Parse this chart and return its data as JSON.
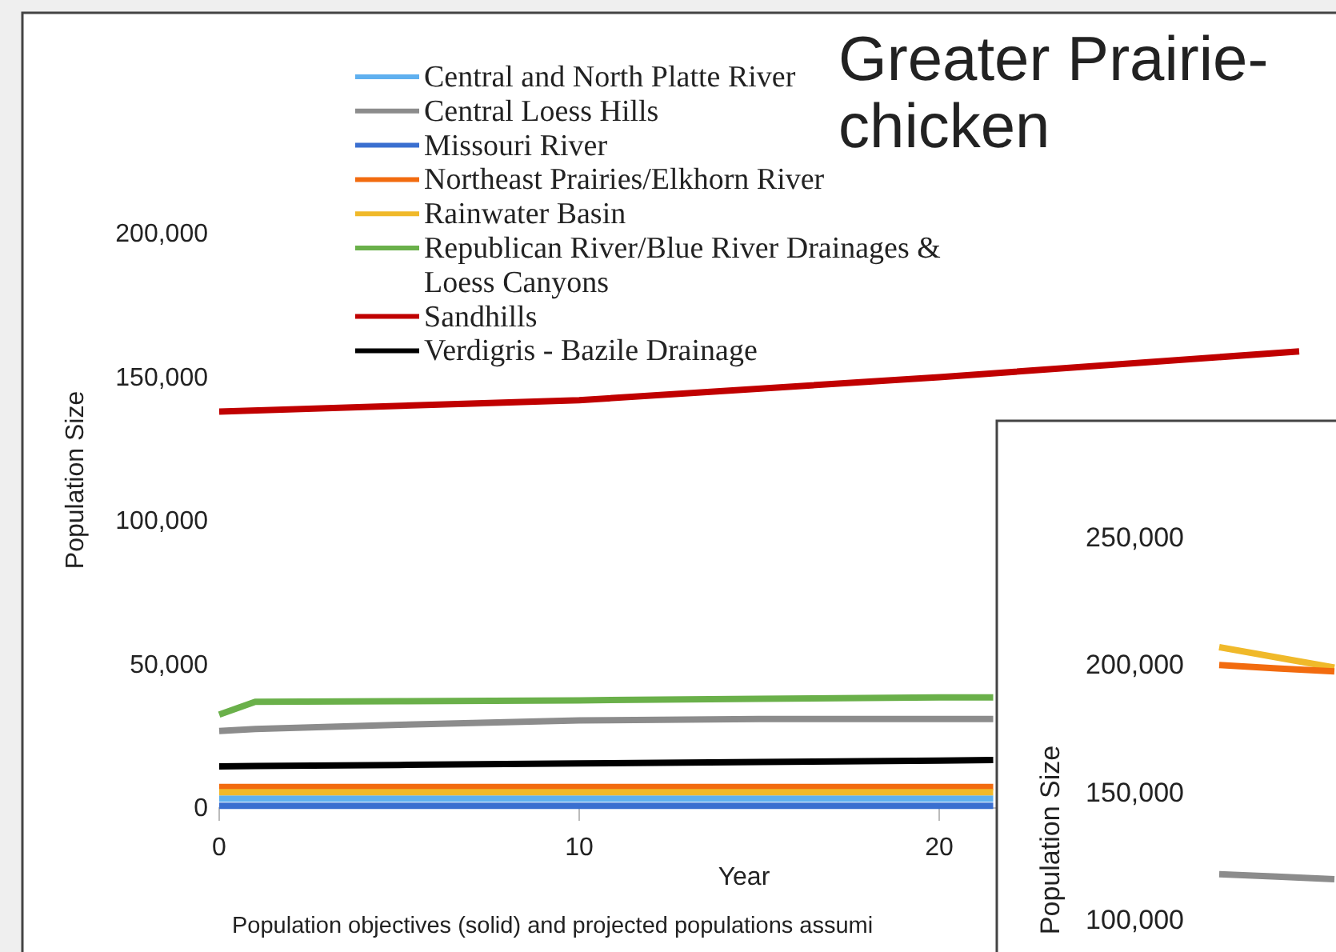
{
  "chart_data": [
    {
      "type": "line",
      "title": "Greater Prairie-chicken",
      "xlabel": "Year",
      "ylabel": "Population Size",
      "annotations": [
        "Population objectives (solid) and projected populations assumi"
      ],
      "x": [
        0,
        1,
        5,
        10,
        15,
        20,
        21.5
      ],
      "series": [
        {
          "name": "Central and North Platte River",
          "color": "#5fb0ef",
          "values": [
            3300,
            3300,
            3300,
            3300,
            3300,
            3300,
            3300
          ]
        },
        {
          "name": "Central Loess Hills",
          "color": "#8c8c8c",
          "values": [
            26800,
            27500,
            29000,
            30500,
            31000,
            31000,
            31000
          ]
        },
        {
          "name": "Missouri River",
          "color": "#3a6fd0",
          "values": [
            800,
            800,
            800,
            800,
            800,
            800,
            800
          ]
        },
        {
          "name": "Northeast Prairies/Elkhorn River",
          "color": "#f26b0f",
          "values": [
            7300,
            7300,
            7300,
            7300,
            7300,
            7300,
            7300
          ]
        },
        {
          "name": "Rainwater Basin",
          "color": "#f0b92a",
          "values": [
            5500,
            5500,
            5500,
            5500,
            5500,
            5500,
            5500
          ]
        },
        {
          "name": "Republican River/Blue River Drainages & Loess Canyons",
          "color": "#6ab04a",
          "values": [
            32500,
            37000,
            37200,
            37500,
            38000,
            38500,
            38500
          ]
        },
        {
          "name": "Sandhills",
          "color": "#c00000",
          "x": [
            0,
            10,
            20,
            30
          ],
          "values": [
            138000,
            142000,
            150000,
            159000
          ]
        },
        {
          "name": "Verdigris - Bazile Drainage",
          "color": "#000000",
          "values": [
            14500,
            14600,
            15000,
            15500,
            16000,
            16500,
            16700
          ]
        }
      ],
      "xlim": [
        0,
        30
      ],
      "xticks": [
        0,
        10,
        20
      ],
      "ylim": [
        0,
        200000
      ],
      "yticks": [
        {
          "value": 0,
          "label": "0"
        },
        {
          "value": 50000,
          "label": "50,000"
        },
        {
          "value": 100000,
          "label": "100,000"
        },
        {
          "value": 150000,
          "label": "150,000"
        },
        {
          "value": 200000,
          "label": "200,000"
        }
      ],
      "legend": "top",
      "grid": false,
      "line_style": "solid",
      "marker": "none"
    },
    {
      "type": "line",
      "ylabel": "Population Size",
      "categories": [
        null,
        null,
        null
      ],
      "series": [
        {
          "color": "#f0b92a",
          "values": [
            207000,
            203000,
            199000
          ]
        },
        {
          "color": "#f26b0f",
          "values": [
            200000,
            198700,
            197500
          ]
        },
        {
          "color": "#8c8c8c",
          "values": [
            118000,
            117000,
            116000
          ]
        }
      ],
      "ylim": [
        100000,
        250000
      ],
      "yticks": [
        {
          "value": 100000,
          "label": "100,000"
        },
        {
          "value": 150000,
          "label": "150,000"
        },
        {
          "value": 200000,
          "label": "200,000"
        },
        {
          "value": 250000,
          "label": "250,000"
        }
      ],
      "tick_labels": "y",
      "grid": false,
      "legend": false
    }
  ]
}
